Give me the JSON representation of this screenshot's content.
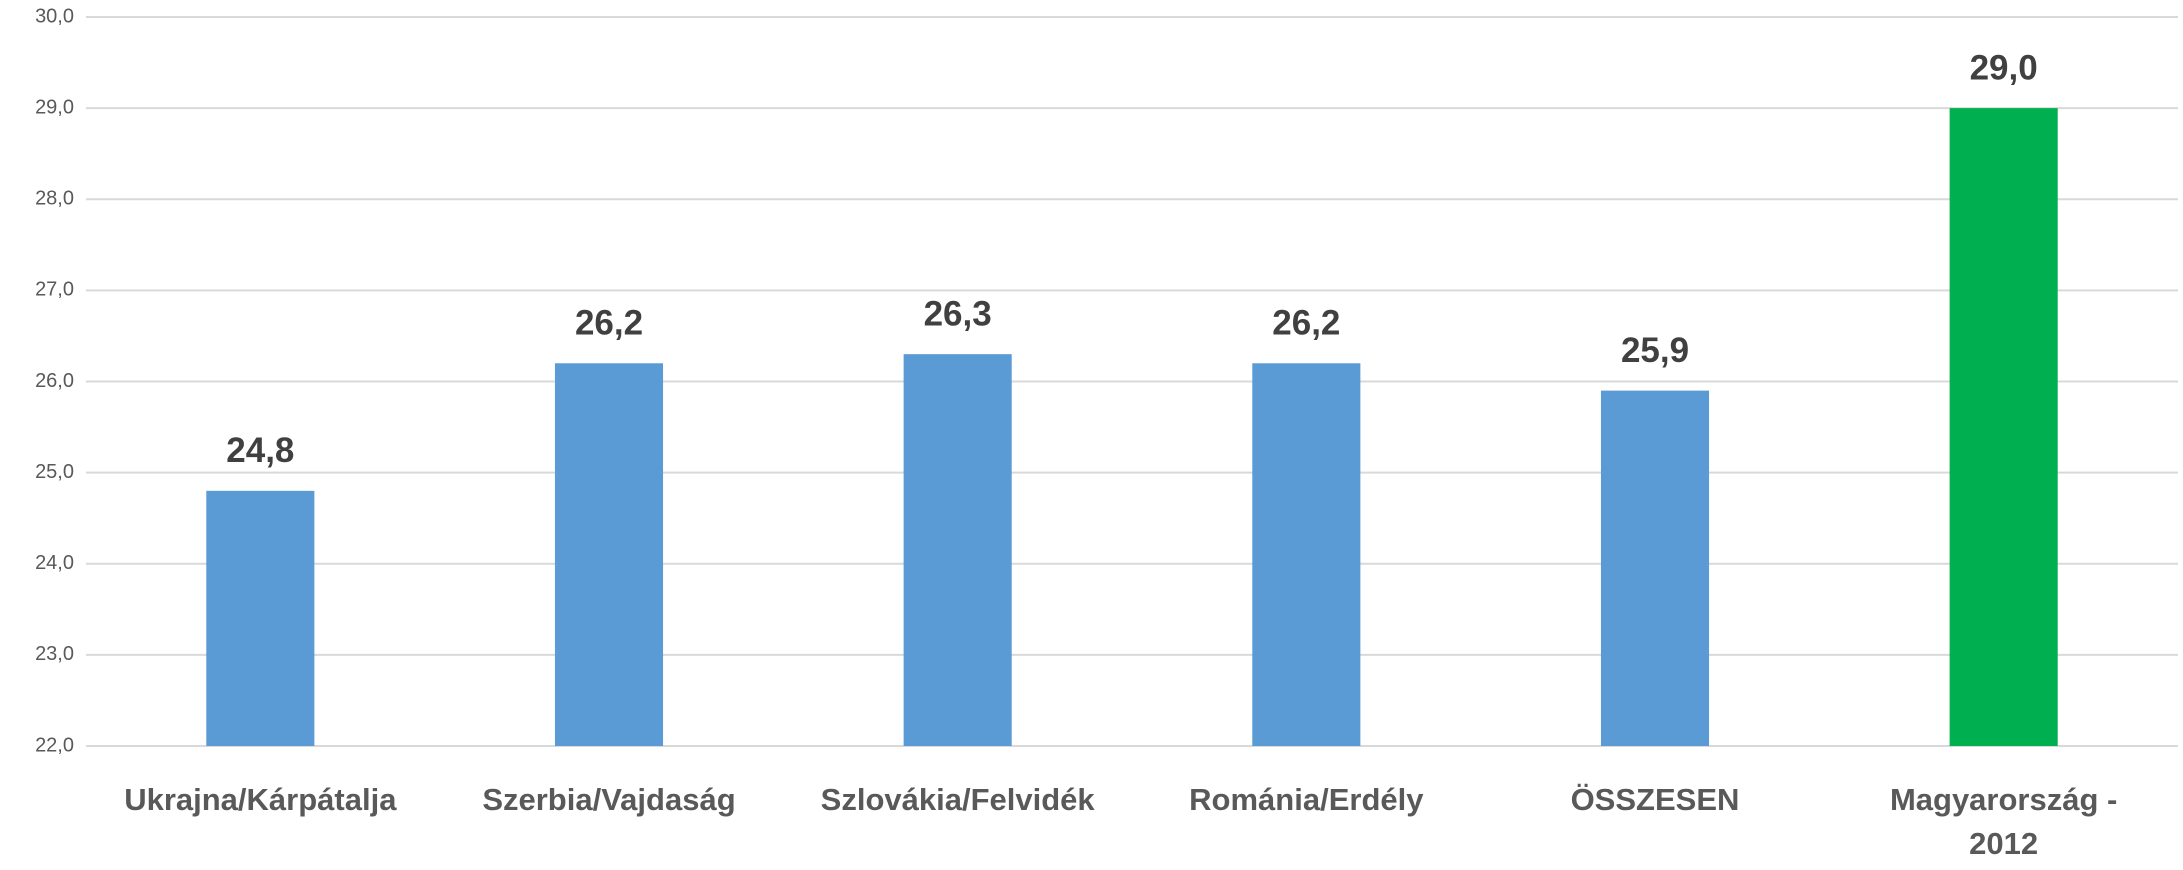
{
  "chart_data": {
    "type": "bar",
    "categories": [
      "Ukrajna/Kárpátalja",
      "Szerbia/Vajdaság",
      "Szlovákia/Felvidék",
      "Románia/Erdély",
      "ÖSSZESEN",
      "Magyarország - 2012"
    ],
    "values": [
      24.8,
      26.2,
      26.3,
      26.2,
      25.9,
      29.0
    ],
    "value_labels": [
      "24,8",
      "26,2",
      "26,3",
      "26,2",
      "25,9",
      "29,0"
    ],
    "colors": [
      "#5b9bd5",
      "#5b9bd5",
      "#5b9bd5",
      "#5b9bd5",
      "#5b9bd5",
      "#00b050"
    ],
    "ylim": [
      22,
      30
    ],
    "yticks": [
      {
        "value": 22,
        "label": "22,0"
      },
      {
        "value": 23,
        "label": "23,0"
      },
      {
        "value": 24,
        "label": "24,0"
      },
      {
        "value": 25,
        "label": "25,0"
      },
      {
        "value": 26,
        "label": "26,0"
      },
      {
        "value": 27,
        "label": "27,0"
      },
      {
        "value": 28,
        "label": "28,0"
      },
      {
        "value": 29,
        "label": "29,0"
      },
      {
        "value": 30,
        "label": "30,0"
      }
    ],
    "grid": true
  }
}
